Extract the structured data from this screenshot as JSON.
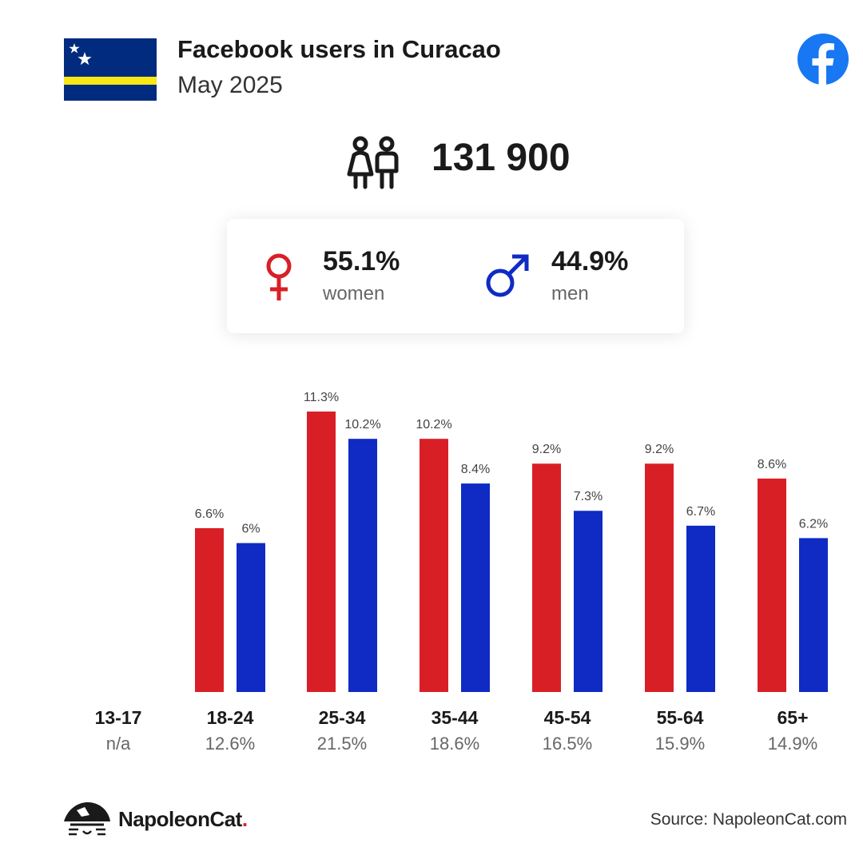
{
  "header": {
    "title": "Facebook users in Curacao",
    "subtitle": "May 2025",
    "flag_icon": "curacao-flag-icon",
    "platform_icon": "facebook-logo-icon"
  },
  "summary": {
    "users_icon": "people-icon",
    "total_users": "131 900"
  },
  "gender": {
    "women": {
      "percent": "55.1%",
      "label": "women",
      "icon": "female-symbol-icon",
      "color": "#d91f26"
    },
    "men": {
      "percent": "44.9%",
      "label": "men",
      "icon": "male-symbol-icon",
      "color": "#0f2bc4"
    }
  },
  "chart_data": {
    "type": "bar",
    "categories": [
      "13-17",
      "18-24",
      "25-34",
      "35-44",
      "45-54",
      "55-64",
      "65+"
    ],
    "category_totals": [
      "n/a",
      "12.6%",
      "21.5%",
      "18.6%",
      "16.5%",
      "15.9%",
      "14.9%"
    ],
    "series": [
      {
        "color": "#d91f26",
        "values": [
          null,
          6.6,
          11.3,
          10.2,
          9.2,
          9.2,
          8.6
        ],
        "labels": [
          "",
          "6.6%",
          "11.3%",
          "10.2%",
          "9.2%",
          "9.2%",
          "8.6%"
        ]
      },
      {
        "color": "#0f2bc4",
        "values": [
          null,
          6,
          10.2,
          8.4,
          7.3,
          6.7,
          6.2
        ],
        "labels": [
          "",
          "6%",
          "10.2%",
          "8.4%",
          "7.3%",
          "6.7%",
          "6.2%"
        ]
      }
    ],
    "ylim": [
      0,
      11.3
    ],
    "grid": false,
    "legend": "none"
  },
  "footer": {
    "brand_name": "NapoleonCat",
    "brand_dot": ".",
    "brand_icon": "napoleoncat-logo-icon",
    "source": "Source: NapoleonCat.com"
  }
}
